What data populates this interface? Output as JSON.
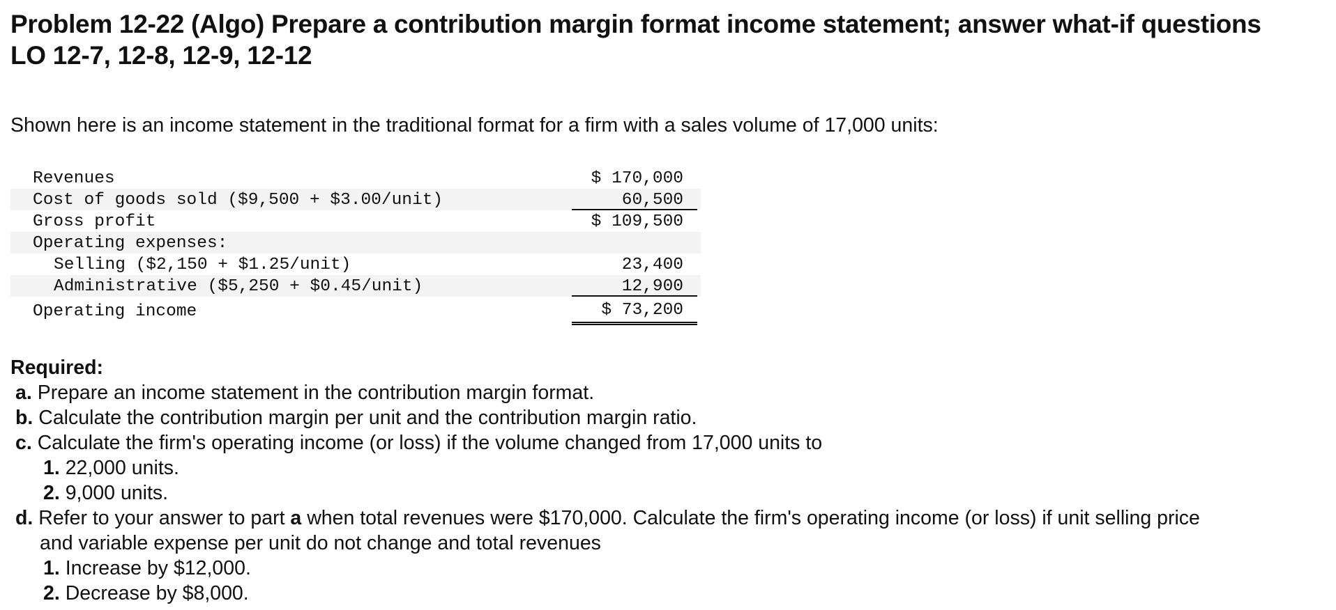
{
  "problem": {
    "title_line1": "Problem 12-22 (Algo) Prepare a contribution margin format income statement; answer what-if questions",
    "title_line2": "LO 12-7, 12-8, 12-9, 12-12"
  },
  "intro": "Shown here is an income statement in the traditional format for a firm with a sales volume of 17,000 units:",
  "statement": {
    "rows": [
      {
        "label": "Revenues",
        "amount": "$ 170,000"
      },
      {
        "label": "Cost of goods sold ($9,500 + $3.00/unit)",
        "amount": "60,500"
      },
      {
        "label": "Gross profit",
        "amount": "$ 109,500"
      },
      {
        "label": "Operating expenses:",
        "amount": ""
      },
      {
        "label": "Selling ($2,150 + $1.25/unit)",
        "amount": "23,400"
      },
      {
        "label": "Administrative ($5,250 + $0.45/unit)",
        "amount": "12,900"
      },
      {
        "label": "Operating income",
        "amount": "$ 73,200"
      }
    ]
  },
  "required": {
    "heading": "Required:",
    "a": {
      "marker": "a.",
      "text": "Prepare an income statement in the contribution margin format."
    },
    "b": {
      "marker": "b.",
      "text": "Calculate the contribution margin per unit and the contribution margin ratio."
    },
    "c": {
      "marker": "c.",
      "text": "Calculate the firm's operating income (or loss) if the volume changed from 17,000 units to",
      "subs": [
        {
          "marker": "1.",
          "text": "22,000 units."
        },
        {
          "marker": "2.",
          "text": "9,000 units."
        }
      ]
    },
    "d": {
      "marker": "d.",
      "text_pre": "Refer to your answer to part",
      "text_bold": "a",
      "text_post": "when total revenues were $170,000. Calculate the firm's operating income (or loss) if unit selling price",
      "text_cont": "and variable expense per unit do not change and total revenues",
      "subs": [
        {
          "marker": "1.",
          "text": "Increase by $12,000."
        },
        {
          "marker": "2.",
          "text": "Decrease by $8,000."
        }
      ]
    }
  }
}
